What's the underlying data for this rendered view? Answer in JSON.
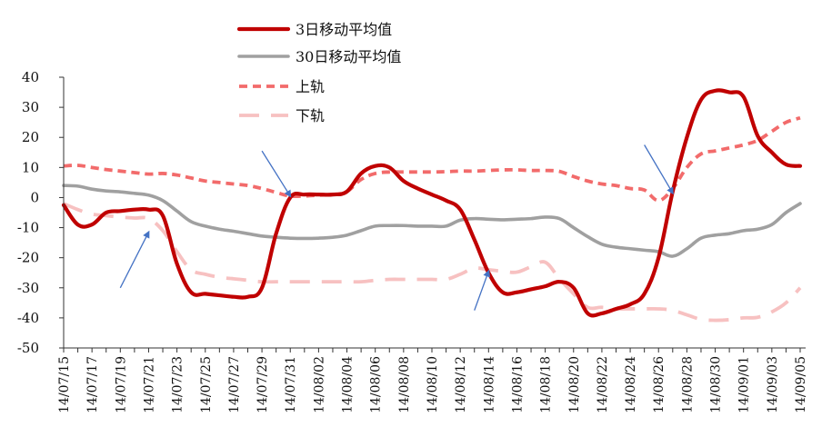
{
  "colors": {
    "ma3": "#c00000",
    "ma30": "#a0a0a0",
    "upper": "#f26b6b",
    "lower": "#f7c1c1",
    "arrow": "#4472c4"
  },
  "chart_data": {
    "type": "line",
    "title": "",
    "xlabel": "",
    "ylabel": "",
    "ylim": [
      -50,
      40
    ],
    "yticks": [
      -50,
      -40,
      -30,
      -20,
      -10,
      0,
      10,
      20,
      30,
      40
    ],
    "yticklabels": [
      "-50",
      "-40",
      "-30",
      "-20",
      "-10",
      "0",
      "10",
      "20",
      "30",
      "40"
    ],
    "x_start": "14/07/15",
    "x_ticks": [
      "14/07/15",
      "14/07/17",
      "14/07/19",
      "14/07/21",
      "14/07/23",
      "14/07/25",
      "14/07/27",
      "14/07/29",
      "14/07/31",
      "14/08/02",
      "14/08/04",
      "14/08/06",
      "14/08/08",
      "14/08/10",
      "14/08/12",
      "14/08/14",
      "14/08/16",
      "14/08/18",
      "14/08/20",
      "14/08/22",
      "14/08/24",
      "14/08/26",
      "14/08/28",
      "14/08/30",
      "14/09/01",
      "14/09/03",
      "14/09/05"
    ],
    "grid": false,
    "legend_position": "top-center",
    "x": [
      "14/07/15",
      "14/07/16",
      "14/07/17",
      "14/07/18",
      "14/07/19",
      "14/07/20",
      "14/07/21",
      "14/07/22",
      "14/07/23",
      "14/07/24",
      "14/07/25",
      "14/07/26",
      "14/07/27",
      "14/07/28",
      "14/07/29",
      "14/07/30",
      "14/07/31",
      "14/08/01",
      "14/08/02",
      "14/08/03",
      "14/08/04",
      "14/08/05",
      "14/08/06",
      "14/08/07",
      "14/08/08",
      "14/08/09",
      "14/08/10",
      "14/08/11",
      "14/08/12",
      "14/08/13",
      "14/08/14",
      "14/08/15",
      "14/08/16",
      "14/08/17",
      "14/08/18",
      "14/08/19",
      "14/08/20",
      "14/08/21",
      "14/08/22",
      "14/08/23",
      "14/08/24",
      "14/08/25",
      "14/08/26",
      "14/08/27",
      "14/08/28",
      "14/08/29",
      "14/08/30",
      "14/08/31",
      "14/09/01",
      "14/09/02",
      "14/09/03",
      "14/09/04",
      "14/09/05"
    ],
    "series": [
      {
        "name": "3日移动平均值",
        "key": "ma3",
        "style": "solid",
        "values": [
          -2.5,
          -9,
          -9,
          -5,
          -4.5,
          -4,
          -4,
          -6,
          -22,
          -31.5,
          -32,
          -32.5,
          -33,
          -33,
          -30,
          -12,
          0,
          1,
          1,
          1,
          2,
          8,
          10.5,
          10,
          5.5,
          3,
          1,
          -1,
          -4,
          -14,
          -25,
          -31.5,
          -31.5,
          -30.5,
          -29.5,
          -28,
          -30,
          -38.5,
          -38.5,
          -37,
          -35.5,
          -32,
          -20,
          2,
          20,
          32.5,
          35.5,
          35,
          33.5,
          20.5,
          15,
          11,
          10.5
        ]
      },
      {
        "name": "30日移动平均值",
        "key": "ma30",
        "style": "solid",
        "values": [
          4,
          3.8,
          2.8,
          2.2,
          1.9,
          1.4,
          0.8,
          -1,
          -4.5,
          -8,
          -9.5,
          -10.5,
          -11.2,
          -12,
          -12.8,
          -13.2,
          -13.5,
          -13.6,
          -13.5,
          -13.2,
          -12.5,
          -11,
          -9.5,
          -9.3,
          -9.3,
          -9.5,
          -9.5,
          -9.5,
          -7.5,
          -7,
          -7.2,
          -7.4,
          -7.2,
          -7,
          -6.5,
          -7,
          -10,
          -13,
          -15.5,
          -16.5,
          -17,
          -17.5,
          -18,
          -19.5,
          -17,
          -13.5,
          -12.5,
          -12,
          -11,
          -10.5,
          -9,
          -5,
          -2
        ]
      },
      {
        "name": "上轨",
        "key": "upper",
        "style": "dash",
        "values": [
          10.5,
          10.7,
          10,
          9.3,
          8.8,
          8.3,
          7.8,
          8,
          7.5,
          6.5,
          5.5,
          5,
          4.5,
          4,
          3,
          1.7,
          0.5,
          0.5,
          0.8,
          1,
          2,
          6,
          8,
          8.5,
          8.5,
          8.5,
          8.5,
          8.6,
          8.8,
          8.8,
          9,
          9.2,
          9.2,
          9,
          9,
          8.7,
          7,
          5.5,
          4.5,
          4,
          3,
          2.5,
          -1,
          3,
          10,
          14.5,
          15.5,
          16.5,
          17.5,
          19,
          22,
          25,
          26.5
        ]
      },
      {
        "name": "下轨",
        "key": "lower",
        "style": "longdash",
        "values": [
          -2,
          -4,
          -5.5,
          -6,
          -6.5,
          -6.8,
          -7,
          -11,
          -18,
          -24,
          -25.5,
          -26.5,
          -27,
          -27.5,
          -28,
          -28,
          -28,
          -28,
          -28,
          -28,
          -28,
          -28,
          -27.5,
          -27.2,
          -27.2,
          -27.2,
          -27.2,
          -27.2,
          -25.5,
          -23.5,
          -24,
          -24.5,
          -24.8,
          -23,
          -21.5,
          -27,
          -32,
          -36.5,
          -36.5,
          -37,
          -37,
          -37,
          -37,
          -37.5,
          -39,
          -40.5,
          -40.8,
          -40.6,
          -40,
          -39.8,
          -38,
          -35,
          -30
        ]
      }
    ],
    "annotations": [
      {
        "type": "arrow",
        "from": [
          "14/07/19",
          -30
        ],
        "to": [
          "14/07/21",
          -11.5
        ]
      },
      {
        "type": "arrow",
        "from": [
          "14/07/29",
          15.5
        ],
        "to": [
          "14/07/31",
          0.5
        ]
      },
      {
        "type": "arrow",
        "from": [
          "14/08/13",
          -37.5
        ],
        "to": [
          "14/08/14",
          -24.5
        ]
      },
      {
        "type": "arrow",
        "from": [
          "14/08/25",
          17.5
        ],
        "to": [
          "14/08/27",
          1.5
        ]
      }
    ]
  }
}
